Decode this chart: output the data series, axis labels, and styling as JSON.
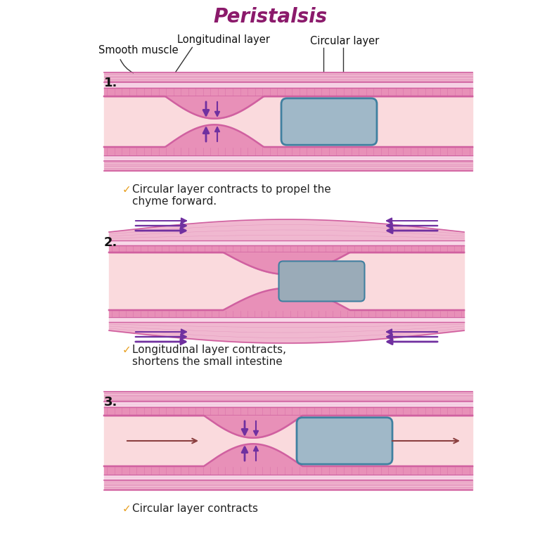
{
  "title": "Peristalsis",
  "title_color": "#8B1A6B",
  "title_fontsize": 20,
  "bg_color": "#FFFFFF",
  "label_smooth_muscle": "Smooth muscle",
  "label_longitudinal": "Longitudinal layer",
  "label_circular": "Circular layer",
  "caption1": "Circular layer contracts to propel the\nchyme forward.",
  "caption2": "Longitudinal layer contracts,\nshortens the small intestine",
  "caption3": "Circular layer contracts",
  "caption_color": "#222222",
  "checkmark_color": "#E8A020",
  "number_color": "#111111",
  "outer_band_color": "#F0B8D0",
  "outer_band_line_color": "#D060A0",
  "outer_band_light": "#F8D8E8",
  "inner_band_color": "#E890B8",
  "inner_band_line_color": "#D060A0",
  "lumen_color": "#FADADD",
  "constriction_line_color": "#D060A0",
  "bolus_fill_blue": "#A0B8C8",
  "bolus_fill_gray": "#9AABB8",
  "bolus_line_blue": "#4080A0",
  "arrow_color_purple": "#7030A0",
  "arrow_color_brown": "#8B4040",
  "diag2_outer_color": "#F0C0D8",
  "diag2_outer_line": "#D060A0"
}
